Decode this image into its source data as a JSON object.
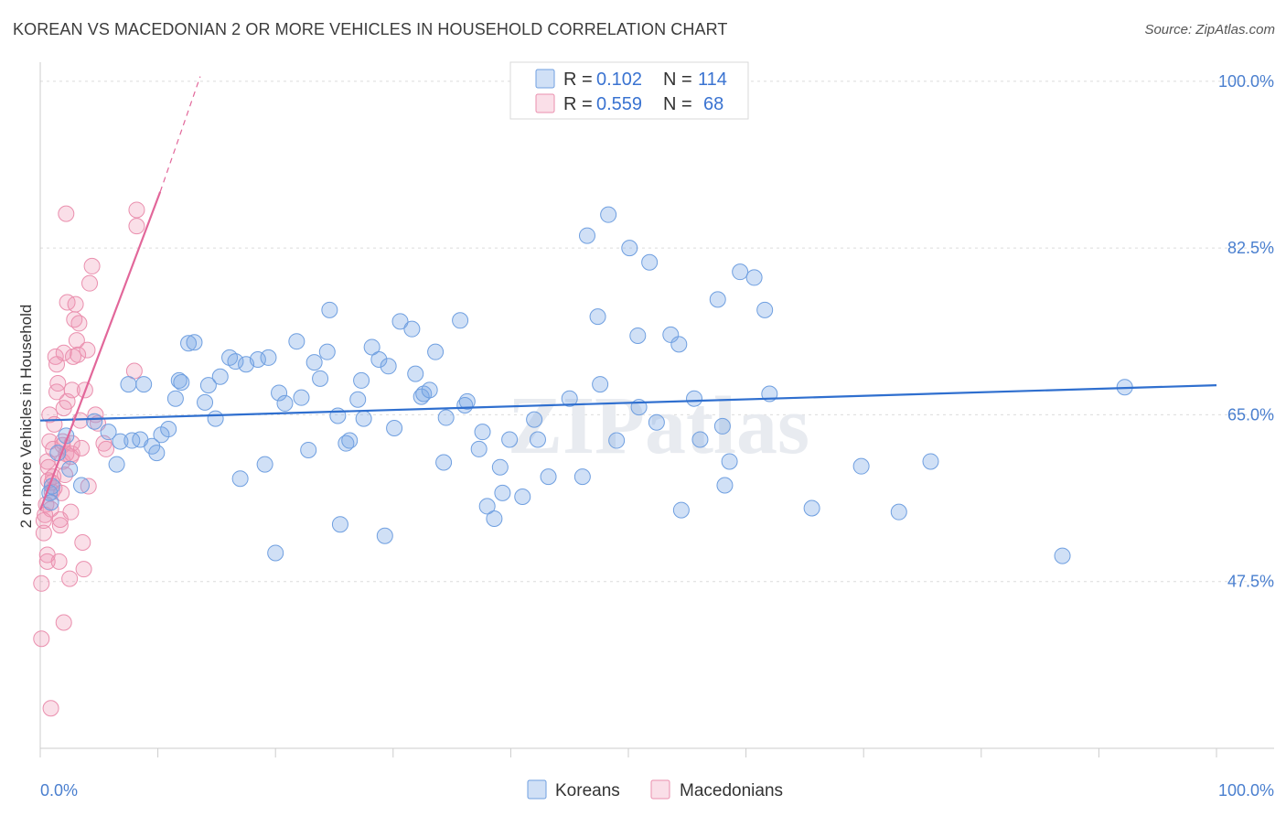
{
  "title": "KOREAN VS MACEDONIAN 2 OR MORE VEHICLES IN HOUSEHOLD CORRELATION CHART",
  "source": "Source: ZipAtlas.com",
  "watermark": "ZIPatlas",
  "colors": {
    "korean_fill": "rgba(120,165,230,0.35)",
    "korean_stroke": "#6f9fe0",
    "korean_line": "#2f6fcf",
    "macedonian_fill": "rgba(240,150,180,0.30)",
    "macedonian_stroke": "#ea8fae",
    "macedonian_line": "#e2679a",
    "tick_text": "#4a7fcf"
  },
  "legend": {
    "rows": [
      {
        "r_label": "R =",
        "r_value": "0.102",
        "n_label": "N =",
        "n_value": "114"
      },
      {
        "r_label": "R =",
        "r_value": "0.559",
        "n_label": "N =",
        "n_value": "68"
      }
    ]
  },
  "bottom_legend": [
    "Koreans",
    "Macedonians"
  ],
  "chart_data": {
    "type": "scatter",
    "title": "KOREAN VS MACEDONIAN 2 OR MORE VEHICLES IN HOUSEHOLD CORRELATION CHART",
    "ylabel": "2 or more Vehicles in Household",
    "xlabel": "",
    "xlim": [
      0,
      100
    ],
    "ylim": [
      30,
      102
    ],
    "y_ticks": [
      100.0,
      82.5,
      65.0,
      47.5
    ],
    "y_tick_labels": [
      "100.0%",
      "82.5%",
      "65.0%",
      "47.5%"
    ],
    "x_tick_labels": [
      "0.0%",
      "100.0%"
    ],
    "grid": true,
    "legend_position": "top-center",
    "series": [
      {
        "name": "Koreans",
        "r": 0.102,
        "n": 114,
        "trend": {
          "x": [
            0,
            100
          ],
          "y": [
            64.4,
            68.1
          ]
        },
        "points": [
          [
            0.8,
            56.8
          ],
          [
            1.0,
            57.5
          ],
          [
            0.9,
            55.8
          ],
          [
            1.5,
            61.0
          ],
          [
            2.2,
            62.8
          ],
          [
            2.5,
            59.3
          ],
          [
            3.5,
            57.6
          ],
          [
            4.6,
            64.3
          ],
          [
            5.8,
            63.2
          ],
          [
            6.5,
            59.8
          ],
          [
            6.8,
            62.2
          ],
          [
            7.5,
            68.2
          ],
          [
            7.8,
            62.3
          ],
          [
            8.5,
            62.4
          ],
          [
            8.8,
            68.2
          ],
          [
            9.5,
            61.7
          ],
          [
            9.9,
            61.0
          ],
          [
            10.3,
            62.9
          ],
          [
            10.9,
            63.5
          ],
          [
            11.5,
            66.7
          ],
          [
            11.8,
            68.6
          ],
          [
            12.0,
            68.4
          ],
          [
            12.6,
            72.5
          ],
          [
            13.1,
            72.6
          ],
          [
            14.0,
            66.3
          ],
          [
            14.3,
            68.1
          ],
          [
            14.9,
            64.6
          ],
          [
            15.3,
            69.0
          ],
          [
            16.1,
            71.0
          ],
          [
            16.6,
            70.6
          ],
          [
            17.0,
            58.3
          ],
          [
            17.5,
            70.3
          ],
          [
            18.5,
            70.8
          ],
          [
            19.1,
            59.8
          ],
          [
            19.4,
            71.0
          ],
          [
            20.0,
            50.5
          ],
          [
            20.3,
            67.3
          ],
          [
            20.8,
            66.2
          ],
          [
            21.8,
            72.7
          ],
          [
            22.2,
            66.8
          ],
          [
            22.8,
            61.3
          ],
          [
            23.3,
            70.5
          ],
          [
            23.8,
            68.8
          ],
          [
            24.4,
            71.6
          ],
          [
            24.6,
            76.0
          ],
          [
            25.3,
            64.9
          ],
          [
            25.5,
            53.5
          ],
          [
            26.0,
            62.0
          ],
          [
            26.3,
            62.3
          ],
          [
            27.0,
            66.6
          ],
          [
            27.3,
            68.6
          ],
          [
            27.5,
            64.6
          ],
          [
            28.2,
            72.1
          ],
          [
            28.8,
            70.8
          ],
          [
            29.3,
            52.3
          ],
          [
            29.6,
            70.1
          ],
          [
            30.1,
            63.6
          ],
          [
            30.6,
            74.8
          ],
          [
            31.6,
            74.0
          ],
          [
            31.9,
            69.3
          ],
          [
            32.4,
            66.9
          ],
          [
            32.6,
            67.2
          ],
          [
            33.1,
            67.6
          ],
          [
            33.6,
            71.6
          ],
          [
            34.3,
            60.0
          ],
          [
            34.5,
            64.7
          ],
          [
            35.7,
            74.9
          ],
          [
            36.1,
            66.0
          ],
          [
            36.3,
            66.4
          ],
          [
            37.3,
            61.4
          ],
          [
            37.6,
            63.2
          ],
          [
            38.0,
            55.4
          ],
          [
            38.6,
            54.1
          ],
          [
            39.1,
            59.5
          ],
          [
            39.3,
            56.8
          ],
          [
            39.9,
            62.4
          ],
          [
            41.0,
            56.4
          ],
          [
            42.0,
            64.5
          ],
          [
            42.3,
            62.4
          ],
          [
            43.2,
            58.5
          ],
          [
            45.0,
            66.7
          ],
          [
            46.1,
            58.5
          ],
          [
            46.5,
            83.8
          ],
          [
            47.4,
            75.3
          ],
          [
            47.6,
            68.2
          ],
          [
            48.3,
            86.0
          ],
          [
            49.0,
            62.3
          ],
          [
            50.1,
            82.5
          ],
          [
            50.8,
            73.3
          ],
          [
            50.9,
            65.8
          ],
          [
            51.8,
            81.0
          ],
          [
            52.4,
            64.2
          ],
          [
            53.6,
            73.4
          ],
          [
            54.3,
            72.4
          ],
          [
            54.5,
            55.0
          ],
          [
            55.6,
            66.7
          ],
          [
            56.1,
            62.4
          ],
          [
            57.6,
            77.1
          ],
          [
            58.0,
            63.8
          ],
          [
            58.2,
            57.6
          ],
          [
            58.6,
            60.1
          ],
          [
            59.5,
            80.0
          ],
          [
            60.7,
            79.4
          ],
          [
            61.6,
            76.0
          ],
          [
            62.0,
            67.2
          ],
          [
            65.6,
            55.2
          ],
          [
            69.8,
            59.6
          ],
          [
            73.0,
            54.8
          ],
          [
            75.7,
            60.1
          ],
          [
            86.9,
            50.2
          ],
          [
            92.2,
            67.9
          ]
        ]
      },
      {
        "name": "Macedonians",
        "r": 0.559,
        "n": 68,
        "trend": {
          "x": [
            0,
            10.2
          ],
          "y": [
            55.0,
            88.4
          ]
        },
        "trend_dashed": {
          "x": [
            10.2,
            13.6
          ],
          "y": [
            88.4,
            100.5
          ]
        },
        "points": [
          [
            0.1,
            41.5
          ],
          [
            0.1,
            47.3
          ],
          [
            0.3,
            52.6
          ],
          [
            0.3,
            53.9
          ],
          [
            0.4,
            54.5
          ],
          [
            0.5,
            55.6
          ],
          [
            0.6,
            49.6
          ],
          [
            0.6,
            50.3
          ],
          [
            0.6,
            60.1
          ],
          [
            0.7,
            58.1
          ],
          [
            0.7,
            59.5
          ],
          [
            0.8,
            62.2
          ],
          [
            0.8,
            65.0
          ],
          [
            0.9,
            34.2
          ],
          [
            1.0,
            56.9
          ],
          [
            1.0,
            57.9
          ],
          [
            1.1,
            58.5
          ],
          [
            1.1,
            61.4
          ],
          [
            1.2,
            64.0
          ],
          [
            1.3,
            71.1
          ],
          [
            1.4,
            70.3
          ],
          [
            1.4,
            67.4
          ],
          [
            1.5,
            68.3
          ],
          [
            1.6,
            49.6
          ],
          [
            1.7,
            53.4
          ],
          [
            1.7,
            54.0
          ],
          [
            1.8,
            56.8
          ],
          [
            1.9,
            60.1
          ],
          [
            1.9,
            61.8
          ],
          [
            1.9,
            62.2
          ],
          [
            2.0,
            65.7
          ],
          [
            2.0,
            71.5
          ],
          [
            2.0,
            43.2
          ],
          [
            2.1,
            58.7
          ],
          [
            2.2,
            60.9
          ],
          [
            2.2,
            86.1
          ],
          [
            2.3,
            76.8
          ],
          [
            2.3,
            66.4
          ],
          [
            2.5,
            47.8
          ],
          [
            2.6,
            54.8
          ],
          [
            2.6,
            60.6
          ],
          [
            2.7,
            60.9
          ],
          [
            2.7,
            62.0
          ],
          [
            2.7,
            67.6
          ],
          [
            2.8,
            71.1
          ],
          [
            2.9,
            75.0
          ],
          [
            3.0,
            76.6
          ],
          [
            3.1,
            72.8
          ],
          [
            3.2,
            71.3
          ],
          [
            3.3,
            74.6
          ],
          [
            3.4,
            64.4
          ],
          [
            3.5,
            61.5
          ],
          [
            3.6,
            51.6
          ],
          [
            3.7,
            48.8
          ],
          [
            3.8,
            67.6
          ],
          [
            4.0,
            71.8
          ],
          [
            4.1,
            57.5
          ],
          [
            4.2,
            78.8
          ],
          [
            4.4,
            80.6
          ],
          [
            4.7,
            65.0
          ],
          [
            4.9,
            64.1
          ],
          [
            5.4,
            62.0
          ],
          [
            5.6,
            61.4
          ],
          [
            8.0,
            69.6
          ],
          [
            8.2,
            84.8
          ],
          [
            8.2,
            86.5
          ],
          [
            1.2,
            57.3
          ],
          [
            0.9,
            55.1
          ]
        ]
      }
    ]
  }
}
